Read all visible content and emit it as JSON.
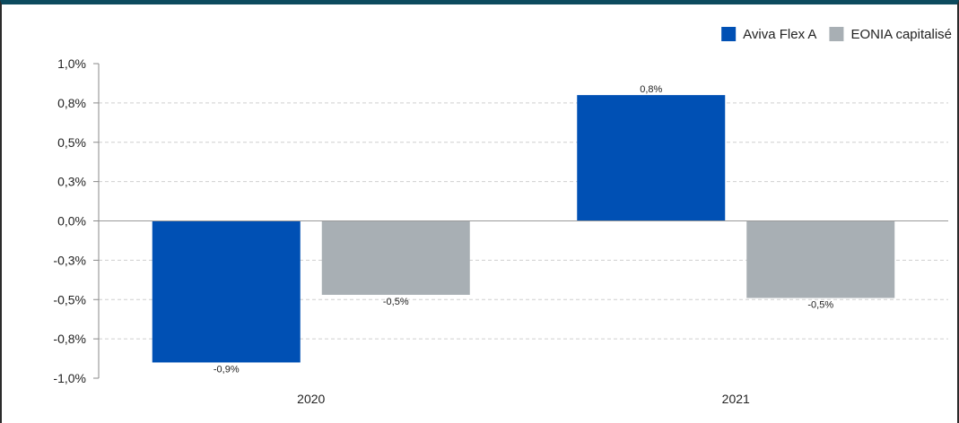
{
  "chart_data": {
    "type": "bar",
    "categories": [
      "2020",
      "2021"
    ],
    "series": [
      {
        "name": "Aviva Flex A",
        "color": "#0050b4",
        "values": [
          -0.9,
          0.8
        ],
        "labels": [
          "-0,9%",
          "0,8%"
        ]
      },
      {
        "name": "EONIA capitalisé",
        "color": "#a8afb4",
        "values": [
          -0.47,
          -0.49
        ],
        "labels": [
          "-0,5%",
          "-0,5%"
        ]
      }
    ],
    "ylim": [
      -1.0,
      1.0
    ],
    "yticks": [
      {
        "value": 1.0,
        "label": "1,0%"
      },
      {
        "value": 0.75,
        "label": "0,8%"
      },
      {
        "value": 0.5,
        "label": "0,5%"
      },
      {
        "value": 0.25,
        "label": "0,3%"
      },
      {
        "value": 0.0,
        "label": "0,0%"
      },
      {
        "value": -0.25,
        "label": "-0,3%"
      },
      {
        "value": -0.5,
        "label": "-0,5%"
      },
      {
        "value": -0.75,
        "label": "-0,8%"
      },
      {
        "value": -1.0,
        "label": "-1,0%"
      }
    ],
    "grid": true,
    "legend_position": "top-right",
    "title": "",
    "xlabel": "",
    "ylabel": ""
  }
}
